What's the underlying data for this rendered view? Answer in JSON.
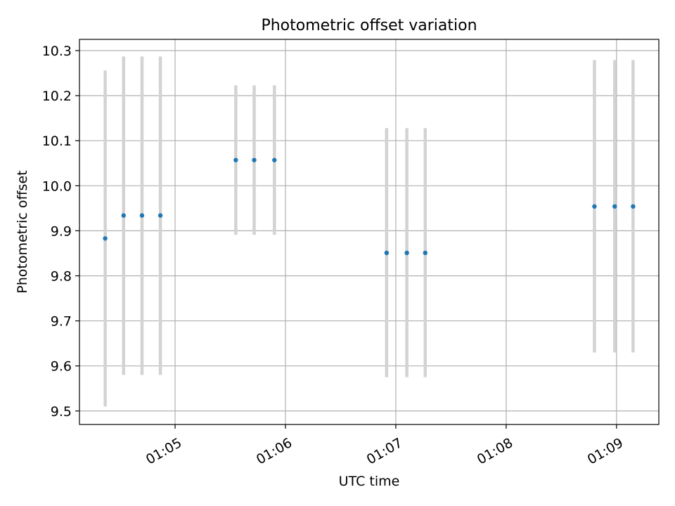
{
  "chart_data": {
    "type": "scatter",
    "title": "Photometric offset variation",
    "xlabel": "UTC time",
    "ylabel": "Photometric offset",
    "x_tick_labels": [
      "01:05",
      "01:06",
      "01:07",
      "01:08",
      "01:09"
    ],
    "x_ticks": [
      "01:05:00",
      "01:06:00",
      "01:07:00",
      "01:08:00",
      "01:09:00"
    ],
    "xlim": [
      "01:04:08",
      "01:09:23"
    ],
    "y_tick_labels": [
      "9.5",
      "9.6",
      "9.7",
      "9.8",
      "9.9",
      "10.0",
      "10.1",
      "10.2",
      "10.3"
    ],
    "y_ticks": [
      9.5,
      9.6,
      9.7,
      9.8,
      9.9,
      10.0,
      10.1,
      10.2,
      10.3
    ],
    "ylim": [
      9.47,
      10.325
    ],
    "grid": true,
    "series": [
      {
        "marker_color": "#1f77b4",
        "errorbar_color": "#d3d3d3",
        "points": [
          {
            "x": "01:04:22",
            "y": 9.883,
            "low": 9.51,
            "high": 10.256
          },
          {
            "x": "01:04:32",
            "y": 9.934,
            "low": 9.58,
            "high": 10.287
          },
          {
            "x": "01:04:42",
            "y": 9.934,
            "low": 9.58,
            "high": 10.287
          },
          {
            "x": "01:04:52",
            "y": 9.934,
            "low": 9.58,
            "high": 10.287
          },
          {
            "x": "01:05:33",
            "y": 10.057,
            "low": 9.891,
            "high": 10.223
          },
          {
            "x": "01:05:43",
            "y": 10.057,
            "low": 9.891,
            "high": 10.223
          },
          {
            "x": "01:05:54",
            "y": 10.057,
            "low": 9.891,
            "high": 10.223
          },
          {
            "x": "01:06:55",
            "y": 9.851,
            "low": 9.575,
            "high": 10.128
          },
          {
            "x": "01:07:06",
            "y": 9.851,
            "low": 9.575,
            "high": 10.128
          },
          {
            "x": "01:07:16",
            "y": 9.851,
            "low": 9.575,
            "high": 10.128
          },
          {
            "x": "01:08:48",
            "y": 9.954,
            "low": 9.63,
            "high": 10.279
          },
          {
            "x": "01:08:59",
            "y": 9.954,
            "low": 9.63,
            "high": 10.279
          },
          {
            "x": "01:09:09",
            "y": 9.954,
            "low": 9.63,
            "high": 10.279
          }
        ]
      }
    ]
  }
}
